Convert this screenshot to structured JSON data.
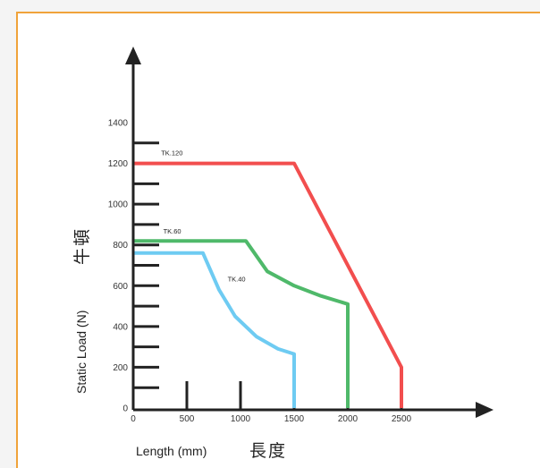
{
  "chart_data": {
    "type": "line",
    "xlabel": "Length (mm)",
    "xlabel_cn": "長度",
    "ylabel": "Static Load (N)",
    "ylabel_cn": "牛頓",
    "xlim": [
      0,
      3000
    ],
    "ylim": [
      0,
      1400
    ],
    "x_ticks": [
      "0",
      "500",
      "1000",
      "1500",
      "2000",
      "2500"
    ],
    "y_ticks": [
      "0",
      "200",
      "400",
      "600",
      "800",
      "1000",
      "1200",
      "1400"
    ],
    "series": [
      {
        "name": "TK.120",
        "color": "#f24e4e",
        "x": [
          0,
          1500,
          2500,
          2500
        ],
        "y": [
          1200,
          1200,
          200,
          0
        ]
      },
      {
        "name": "TK.60",
        "color": "#4fb96a",
        "x": [
          0,
          1050,
          1250,
          1500,
          1750,
          2000,
          2000
        ],
        "y": [
          820,
          820,
          670,
          600,
          550,
          510,
          0
        ]
      },
      {
        "name": "TK.40",
        "color": "#6ecbf2",
        "x": [
          0,
          650,
          800,
          950,
          1150,
          1350,
          1500,
          1500
        ],
        "y": [
          760,
          760,
          580,
          450,
          350,
          290,
          265,
          0
        ]
      }
    ],
    "grid": false,
    "legend": "none"
  }
}
